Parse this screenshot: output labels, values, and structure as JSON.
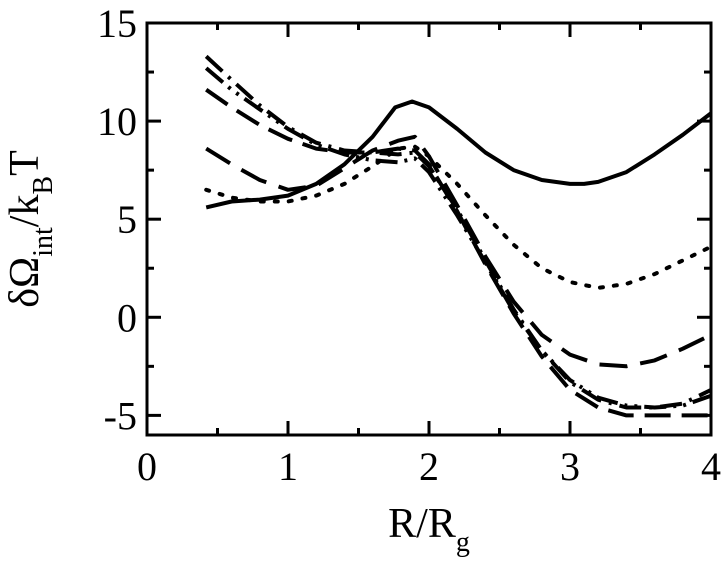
{
  "chart_data": {
    "type": "line",
    "xlabel": {
      "main": "R/R",
      "sub": "g"
    },
    "ylabel": {
      "p1": "δΩ",
      "sub1": "int",
      "p2": "/k",
      "sub2": "B",
      "p3": "T"
    },
    "xlim": [
      0,
      4
    ],
    "ylim": [
      -6,
      15
    ],
    "xticks": [
      "0",
      "1",
      "2",
      "3",
      "4"
    ],
    "yticks": [
      "-5",
      "0",
      "5",
      "10",
      "15"
    ],
    "grid": false,
    "legend": "none",
    "series": [
      {
        "style": "solid",
        "dash": "",
        "x": [
          0.42,
          0.6,
          0.8,
          1.0,
          1.2,
          1.4,
          1.6,
          1.76,
          1.88,
          2.0,
          2.2,
          2.4,
          2.6,
          2.8,
          3.0,
          3.1,
          3.2,
          3.4,
          3.6,
          3.8,
          4.0
        ],
        "y": [
          5.6,
          5.9,
          6.0,
          6.2,
          6.8,
          7.8,
          9.2,
          10.7,
          11.0,
          10.7,
          9.6,
          8.4,
          7.5,
          7.0,
          6.8,
          6.8,
          6.9,
          7.4,
          8.3,
          9.3,
          10.4
        ]
      },
      {
        "style": "dotted",
        "dash": "3,11",
        "x": [
          0.42,
          0.6,
          0.8,
          1.0,
          1.2,
          1.4,
          1.6,
          1.78,
          1.9,
          2.0,
          2.2,
          2.4,
          2.6,
          2.8,
          3.0,
          3.2,
          3.4,
          3.6,
          3.8,
          4.0
        ],
        "y": [
          6.5,
          6.1,
          5.9,
          5.9,
          6.2,
          6.8,
          7.7,
          8.6,
          8.7,
          8.2,
          6.8,
          5.2,
          3.7,
          2.5,
          1.8,
          1.5,
          1.7,
          2.2,
          2.9,
          3.6
        ]
      },
      {
        "style": "long-dash",
        "dash": "28,13",
        "x": [
          0.42,
          0.6,
          0.8,
          1.0,
          1.2,
          1.4,
          1.6,
          1.78,
          1.9,
          2.0,
          2.2,
          2.4,
          2.6,
          2.8,
          3.0,
          3.2,
          3.4,
          3.6,
          3.8,
          4.0
        ],
        "y": [
          8.6,
          7.8,
          7.0,
          6.5,
          6.7,
          7.6,
          8.5,
          9.0,
          9.2,
          8.2,
          5.7,
          3.1,
          0.8,
          -0.9,
          -1.9,
          -2.4,
          -2.5,
          -2.2,
          -1.6,
          -0.9
        ]
      },
      {
        "style": "dash",
        "dash": "26,11",
        "x": [
          0.42,
          0.6,
          0.8,
          1.0,
          1.2,
          1.4,
          1.6,
          1.78,
          1.9,
          2.0,
          2.2,
          2.4,
          2.6,
          2.8,
          3.0,
          3.2,
          3.4,
          3.6,
          3.8,
          4.0
        ],
        "y": [
          11.6,
          10.7,
          9.8,
          9.1,
          8.6,
          8.4,
          8.4,
          8.6,
          8.5,
          7.8,
          5.4,
          2.7,
          0.2,
          -2.0,
          -3.7,
          -4.6,
          -5.0,
          -5.0,
          -5.0,
          -5.0
        ]
      },
      {
        "style": "dash-dot",
        "dash": "22,8,3,8",
        "x": [
          0.42,
          0.6,
          0.8,
          1.0,
          1.2,
          1.4,
          1.6,
          1.78,
          1.9,
          2.0,
          2.2,
          2.4,
          2.6,
          2.8,
          3.0,
          3.2,
          3.4,
          3.6,
          3.8,
          4.0
        ],
        "y": [
          13.3,
          12.1,
          10.8,
          9.7,
          8.9,
          8.5,
          8.4,
          8.3,
          8.4,
          7.7,
          5.5,
          2.9,
          0.4,
          -1.7,
          -3.3,
          -4.2,
          -4.6,
          -4.6,
          -4.4,
          -3.7
        ]
      },
      {
        "style": "dash-dot-dot",
        "dash": "22,7,3,7,3,7",
        "x": [
          0.42,
          0.6,
          0.8,
          1.0,
          1.2,
          1.4,
          1.6,
          1.78,
          1.9,
          2.0,
          2.2,
          2.4,
          2.6,
          2.8,
          3.0,
          3.2,
          3.4,
          3.6,
          3.8,
          4.0
        ],
        "y": [
          12.7,
          11.6,
          10.6,
          9.6,
          8.8,
          8.3,
          8.0,
          7.9,
          8.1,
          7.4,
          5.2,
          2.8,
          0.3,
          -1.7,
          -3.2,
          -4.1,
          -4.5,
          -4.6,
          -4.5,
          -4.0
        ]
      }
    ]
  }
}
